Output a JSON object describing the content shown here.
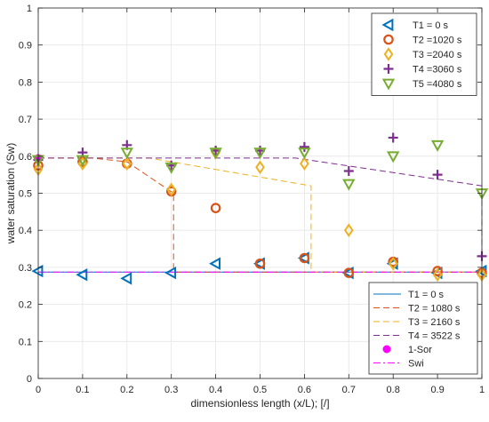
{
  "chart_data": {
    "type": "scatter",
    "xlabel": "dimensionless length (x/L); [/]",
    "ylabel": "water saturation (Sw)",
    "xlim": [
      0,
      1
    ],
    "ylim": [
      0,
      1
    ],
    "grid": true,
    "x_ticks": [
      "0",
      "0.1",
      "0.2",
      "0.3",
      "0.4",
      "0.5",
      "0.6",
      "0.7",
      "0.8",
      "0.9",
      "1"
    ],
    "y_ticks": [
      "0",
      "0.1",
      "0.2",
      "0.3",
      "0.4",
      "0.5",
      "0.6",
      "0.7",
      "0.8",
      "0.9",
      "1"
    ],
    "colors": {
      "blue": "#0072BD",
      "orange": "#D95319",
      "yellow": "#EDB120",
      "purple": "#7E2F8E",
      "green": "#77AC30",
      "magenta": "#FF00FF",
      "grid": "#e5e5e5",
      "axis": "#262626"
    },
    "legend_markers": {
      "placement": "top-right",
      "entries": [
        "T1 =   0  s",
        "T2 =1020  s",
        "T3 =2040  s",
        "T4 =3060  s",
        "T5 =4080  s"
      ]
    },
    "legend_lines": {
      "placement": "bottom-right",
      "entries": [
        "T1 = 0 s",
        "T2 = 1080 s",
        "T3 = 2160 s",
        "T4 = 3522 s",
        "1-Sor",
        "Swi"
      ]
    },
    "marker_series": [
      {
        "name": "T1 =   0  s",
        "marker": "triangle-left",
        "color": "#0072BD",
        "points": [
          [
            0,
            0.29
          ],
          [
            0.1,
            0.28
          ],
          [
            0.2,
            0.27
          ],
          [
            0.3,
            0.285
          ],
          [
            0.4,
            0.31
          ],
          [
            0.5,
            0.31
          ],
          [
            0.6,
            0.325
          ],
          [
            0.7,
            0.285
          ],
          [
            0.8,
            0.31
          ],
          [
            0.9,
            0.285
          ],
          [
            1.0,
            0.29
          ]
        ]
      },
      {
        "name": "T2 =1020  s",
        "marker": "circle",
        "color": "#D95319",
        "points": [
          [
            0,
            0.575
          ],
          [
            0.1,
            0.585
          ],
          [
            0.2,
            0.58
          ],
          [
            0.3,
            0.505
          ],
          [
            0.4,
            0.46
          ],
          [
            0.5,
            0.31
          ],
          [
            0.6,
            0.325
          ],
          [
            0.7,
            0.285
          ],
          [
            0.8,
            0.315
          ],
          [
            0.9,
            0.29
          ],
          [
            1.0,
            0.285
          ]
        ]
      },
      {
        "name": "T3 =2040  s",
        "marker": "diamond",
        "color": "#EDB120",
        "points": [
          [
            0,
            0.565
          ],
          [
            0.1,
            0.58
          ],
          [
            0.2,
            0.58
          ],
          [
            0.3,
            0.51
          ],
          [
            0.4,
            0.61
          ],
          [
            0.5,
            0.57
          ],
          [
            0.6,
            0.58
          ],
          [
            0.7,
            0.4
          ],
          [
            0.8,
            0.31
          ],
          [
            0.9,
            0.28
          ],
          [
            1.0,
            0.28
          ]
        ]
      },
      {
        "name": "T4 =3060  s",
        "marker": "plus",
        "color": "#7E2F8E",
        "points": [
          [
            0,
            0.59
          ],
          [
            0.1,
            0.61
          ],
          [
            0.2,
            0.63
          ],
          [
            0.3,
            0.575
          ],
          [
            0.4,
            0.615
          ],
          [
            0.5,
            0.615
          ],
          [
            0.6,
            0.625
          ],
          [
            0.7,
            0.56
          ],
          [
            0.8,
            0.65
          ],
          [
            0.9,
            0.55
          ],
          [
            1.0,
            0.33
          ]
        ]
      },
      {
        "name": "T5 =4080  s",
        "marker": "triangle-down",
        "color": "#77AC30",
        "points": [
          [
            0,
            0.59
          ],
          [
            0.1,
            0.59
          ],
          [
            0.2,
            0.61
          ],
          [
            0.3,
            0.57
          ],
          [
            0.4,
            0.61
          ],
          [
            0.5,
            0.61
          ],
          [
            0.6,
            0.61
          ],
          [
            0.7,
            0.525
          ],
          [
            0.8,
            0.6
          ],
          [
            0.9,
            0.63
          ],
          [
            1.0,
            0.5
          ]
        ]
      }
    ],
    "line_series": [
      {
        "name": "T1 = 0 s",
        "color": "#0072BD",
        "dash": "solid",
        "points": [
          [
            0,
            0.287
          ],
          [
            1.0,
            0.287
          ]
        ]
      },
      {
        "name": "T2 = 1080 s",
        "color": "#D95319",
        "dash": "dashed",
        "points": [
          [
            0,
            0.595
          ],
          [
            0.12,
            0.595
          ],
          [
            0.2,
            0.585
          ],
          [
            0.305,
            0.5
          ],
          [
            0.305,
            0.287
          ],
          [
            1.0,
            0.287
          ]
        ]
      },
      {
        "name": "T3 = 2160 s",
        "color": "#EDB120",
        "dash": "dashed",
        "points": [
          [
            0,
            0.595
          ],
          [
            0.25,
            0.595
          ],
          [
            0.615,
            0.52
          ],
          [
            0.615,
            0.287
          ],
          [
            1.0,
            0.287
          ]
        ]
      },
      {
        "name": "T4 = 3522 s",
        "color": "#7E2F8E",
        "dash": "dashed",
        "points": [
          [
            0,
            0.595
          ],
          [
            0.58,
            0.595
          ],
          [
            1.0,
            0.52
          ],
          [
            1.0,
            0.287
          ]
        ]
      },
      {
        "name": "Swi",
        "color": "#FF00FF",
        "dash": "dashdot",
        "points": [
          [
            0,
            0.287
          ],
          [
            1.0,
            0.287
          ]
        ]
      }
    ],
    "point_series": [
      {
        "name": "1-Sor",
        "marker": "filled-circle",
        "color": "#FF00FF",
        "points": [
          [
            0,
            0.595
          ]
        ]
      }
    ]
  }
}
